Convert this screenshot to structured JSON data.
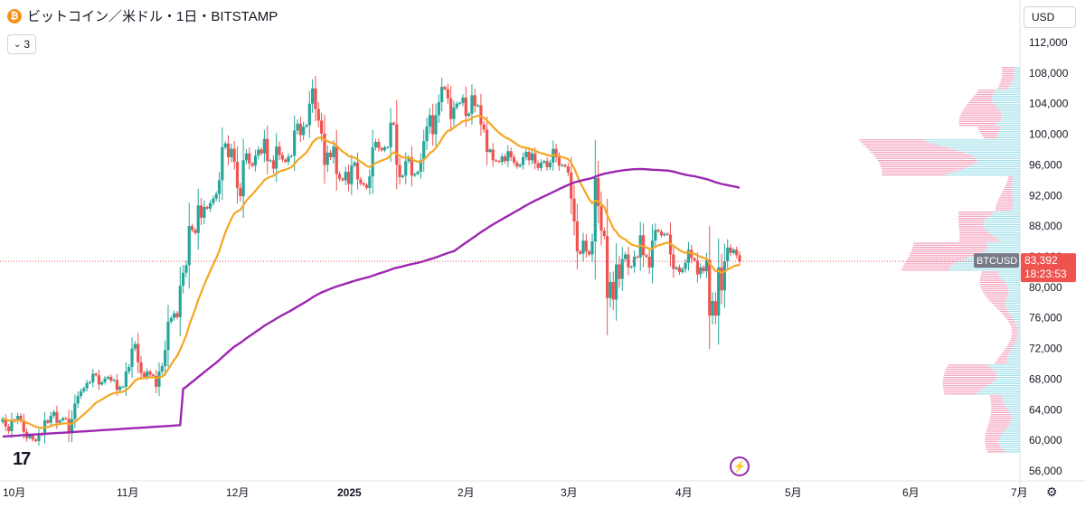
{
  "header": {
    "coin_icon": "bitcoin-icon",
    "title": "ビットコイン／米ドル・1日・BITSTAMP"
  },
  "indicator_toggle": {
    "label": "3"
  },
  "currency": {
    "label": "USD"
  },
  "price_tag": {
    "symbol": "BTCUSD",
    "price": "83,392",
    "countdown": "18:23:53"
  },
  "footer": {
    "logo": "17",
    "settings_icon": "gear-icon",
    "flash_icon": "lightning-icon"
  },
  "colors": {
    "up": "#26a69a",
    "down": "#ef5350",
    "ema_short": "#f5a623",
    "ma_long": "#9c27b0",
    "vp_up": "#8fdbe6",
    "vp_down": "#f48fb1",
    "price_line": "#ef5350",
    "symbol_tag": "#787b86"
  },
  "chart_data": {
    "type": "candlestick",
    "y_ticks": [
      "112,000",
      "108,000",
      "104,000",
      "100,000",
      "96,000",
      "92,000",
      "88,000",
      "84,000",
      "80,000",
      "76,000",
      "72,000",
      "68,000",
      "64,000",
      "60,000",
      "56,000"
    ],
    "ylim": [
      55500,
      113500
    ],
    "x_ticks": [
      "10月",
      "11月",
      "12月",
      "2025",
      "2月",
      "3月",
      "4月",
      "5月",
      "6月",
      "7月"
    ],
    "ohlc_closes": [
      62800,
      61800,
      61200,
      62700,
      62500,
      63200,
      62600,
      61100,
      60300,
      60600,
      60100,
      59900,
      60900,
      60700,
      62600,
      62300,
      63200,
      63700,
      62300,
      62600,
      62900,
      62800,
      60900,
      62800,
      64800,
      65800,
      66400,
      66800,
      67500,
      67600,
      68700,
      68500,
      67300,
      67600,
      68100,
      68300,
      67800,
      67900,
      66600,
      67000,
      67000,
      69000,
      69600,
      72000,
      72600,
      70200,
      68800,
      68300,
      69000,
      68600,
      68400,
      67000,
      69000,
      69700,
      71800,
      75500,
      76000,
      76600,
      76100,
      80200,
      81900,
      82900,
      88000,
      87500,
      87100,
      90700,
      89100,
      90500,
      90300,
      91000,
      91600,
      92200,
      94000,
      98300,
      98800,
      97000,
      98100,
      96400,
      93000,
      91900,
      96600,
      97500,
      96200,
      95900,
      97200,
      98000,
      97500,
      99400,
      96500,
      96600,
      95500,
      98400,
      97300,
      96700,
      96400,
      97100,
      97200,
      100500,
      101400,
      99900,
      101000,
      101200,
      104000,
      106000,
      103300,
      101800,
      100100,
      96000,
      97600,
      97000,
      98400,
      94800,
      94200,
      94000,
      95100,
      93500,
      95900,
      96300,
      94100,
      93600,
      93400,
      93000,
      94500,
      98300,
      99000,
      98200,
      97900,
      98300,
      98300,
      101500,
      101300,
      96000,
      94400,
      94600,
      96500,
      97000,
      94600,
      94800,
      95100,
      96600,
      99100,
      101000,
      102500,
      100000,
      102500,
      104200,
      106200,
      105900,
      104700,
      102000,
      103500,
      104000,
      104100,
      104800,
      102400,
      102700,
      105100,
      103700,
      103800,
      101300,
      100600,
      97700,
      98000,
      96600,
      96500,
      96400,
      97100,
      96500,
      97800,
      97000,
      96300,
      95800,
      96000,
      97000,
      97700,
      96600,
      97500,
      96200,
      95600,
      96300,
      96500,
      95700,
      96300,
      98100,
      97000,
      95900,
      96000,
      95800,
      95000,
      91600,
      88600,
      84700,
      84400,
      86100,
      84700,
      84300,
      86000,
      94300,
      90600,
      87400,
      86700,
      78600,
      80700,
      78400,
      83000,
      81100,
      83700,
      84300,
      82600,
      82700,
      84000,
      83900,
      86800,
      84200,
      84000,
      82600,
      86100,
      87500,
      87300,
      86800,
      87000,
      86900,
      84300,
      82400,
      82600,
      82000,
      82400,
      83200,
      84900,
      83800,
      83500,
      81700,
      82600,
      82100,
      83600,
      76300,
      78200,
      76300,
      82600,
      79600,
      83400,
      85200,
      84500,
      84900,
      84200,
      83400
    ],
    "ema_label": "EMA",
    "ma_label": "MA",
    "volume_profile": true
  }
}
